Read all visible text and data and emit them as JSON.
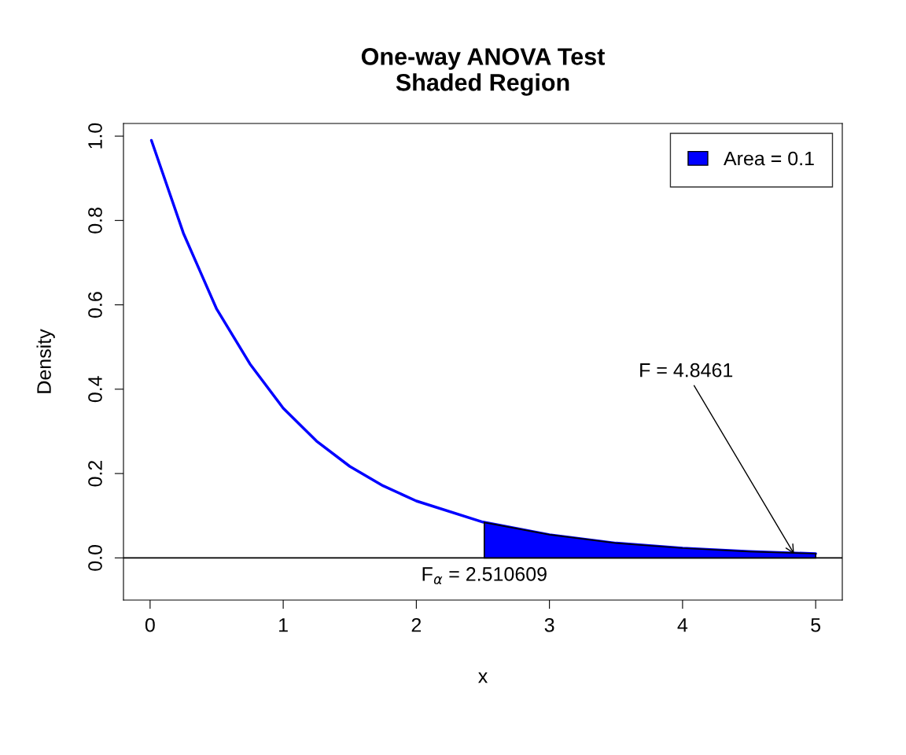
{
  "chart_data": {
    "type": "line",
    "title": "One-way ANOVA Test\nShaded Region",
    "xlabel": "x",
    "ylabel": "Density",
    "series": [
      {
        "color": "#0000ff",
        "x": [
          0.01,
          0.25,
          0.5,
          0.75,
          1,
          1.25,
          1.5,
          1.75,
          2,
          2.5,
          3,
          3.5,
          4,
          4.5,
          5
        ],
        "values": [
          0.99,
          0.77,
          0.59,
          0.46,
          0.355,
          0.277,
          0.217,
          0.171,
          0.135,
          0.085,
          0.055,
          0.035,
          0.023,
          0.015,
          0.01
        ]
      },
      {
        "type": "area",
        "name": "Area = 0.1",
        "color": "#0000ff",
        "x": [
          2.510609,
          3,
          3.5,
          4,
          4.5,
          5
        ],
        "values": [
          0.084,
          0.055,
          0.035,
          0.023,
          0.015,
          0.01
        ]
      }
    ],
    "xlim": [
      -0.2,
      5.2
    ],
    "ylim": [
      -0.1,
      1.03
    ],
    "xticks": [
      0,
      1,
      2,
      3,
      4,
      5
    ],
    "yticks": [
      {
        "value": 0,
        "label": "0.0"
      },
      {
        "value": 0.2,
        "label": "0.2"
      },
      {
        "value": 0.4,
        "label": "0.4"
      },
      {
        "value": 0.6,
        "label": "0.6"
      },
      {
        "value": 0.8,
        "label": "0.8"
      },
      {
        "value": 1,
        "label": "1.0"
      }
    ],
    "ref_lines": [
      {
        "axis": "y",
        "value": 0,
        "color": "#000000"
      }
    ],
    "annotations": [
      {
        "text": "F$_{α}$ = 2.510609",
        "x": 2.510609,
        "y": 0
      },
      {
        "text": "F = 4.8461",
        "x": 4.8461,
        "y": 0.005
      }
    ],
    "legend": "top right",
    "grid": false
  }
}
